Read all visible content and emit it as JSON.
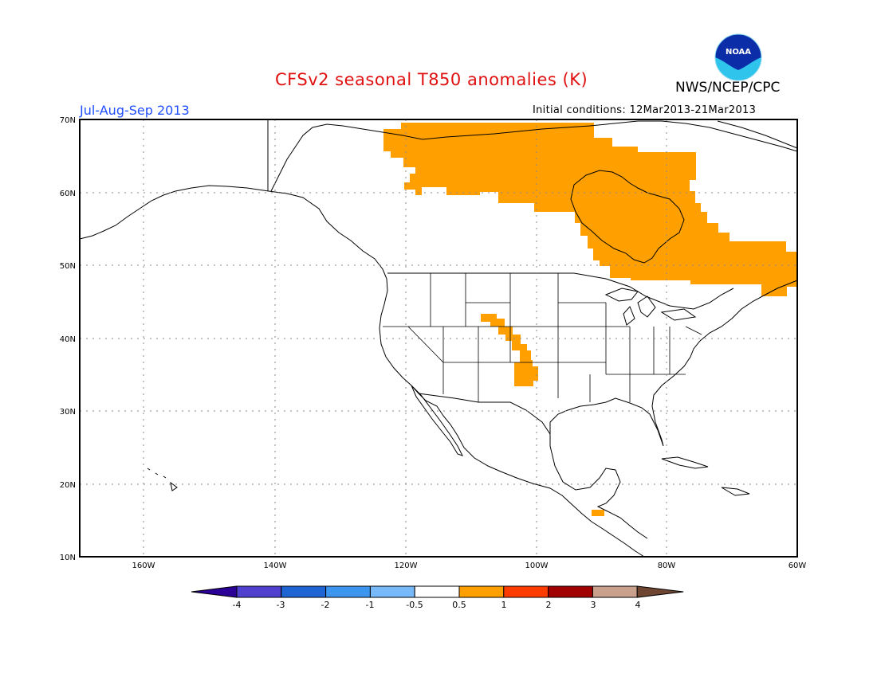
{
  "header": {
    "title": "CFSv2 seasonal T850 anomalies (K)",
    "agency": "NWS/NCEP/CPC",
    "period": "Jul-Aug-Sep 2013",
    "initial_conditions": "Initial conditions: 12Mar2013-21Mar2013",
    "logo_text": "NOAA"
  },
  "map": {
    "projection": "lat-lon",
    "lon_range": [
      -172,
      -60
    ],
    "lat_range": [
      10,
      70
    ],
    "x_ticks": [
      "160W",
      "140W",
      "120W",
      "100W",
      "80W",
      "60W"
    ],
    "y_ticks": [
      "10N",
      "20N",
      "30N",
      "40N",
      "50N",
      "60N",
      "70N"
    ],
    "grid": "dotted",
    "anomaly_regions": [
      {
        "name": "northern-canada",
        "class": "0.5 to 1"
      },
      {
        "name": "great-plains",
        "class": "0.5 to 1"
      },
      {
        "name": "central-america",
        "class": "0.5 to 1"
      }
    ]
  },
  "colorbar": {
    "labels": [
      "-4",
      "-3",
      "-2",
      "-1",
      "-0.5",
      "0.5",
      "1",
      "2",
      "3",
      "4"
    ],
    "colors": [
      "#2a0096",
      "#5040d0",
      "#1e64d2",
      "#3c96f0",
      "#78b9fa",
      "#ffffff",
      "#ffa000",
      "#ff3c00",
      "#a00000",
      "#c8a08c",
      "#6e4632"
    ]
  }
}
